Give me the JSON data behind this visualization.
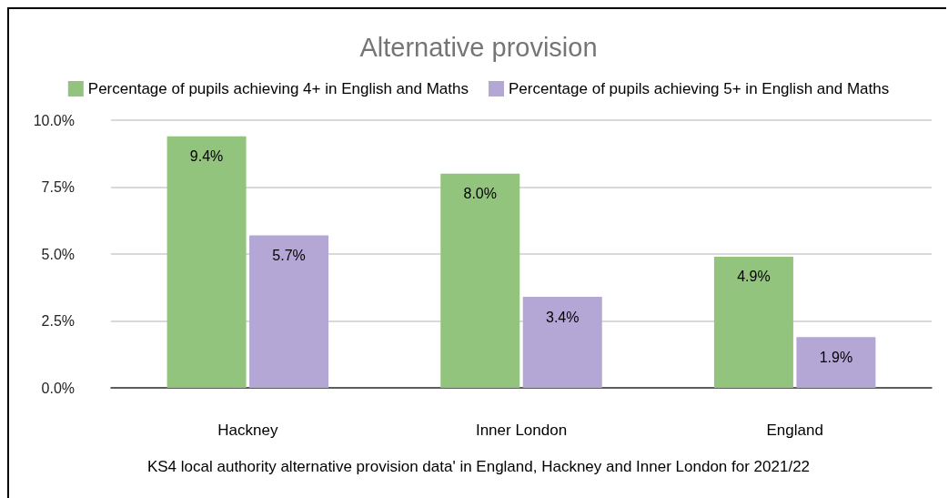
{
  "chart_data": {
    "type": "bar",
    "title": "Alternative provision",
    "categories": [
      "Hackney",
      "Inner London",
      "England"
    ],
    "series": [
      {
        "name": "Percentage of pupils achieving 4+ in English and Maths",
        "color": "#93c47d",
        "values": [
          9.4,
          8.0,
          4.9
        ],
        "value_labels": [
          "9.4%",
          "8.0%",
          "4.9%"
        ]
      },
      {
        "name": "Percentage of pupils achieving 5+ in English and Maths",
        "color": "#b4a7d6",
        "values": [
          5.7,
          3.4,
          1.9
        ],
        "value_labels": [
          "5.7%",
          "3.4%",
          "1.9%"
        ]
      }
    ],
    "ylim": [
      0,
      10
    ],
    "yticks": [
      {
        "value": 0,
        "label": "0.0%"
      },
      {
        "value": 2.5,
        "label": "2.5%"
      },
      {
        "value": 5,
        "label": "5.0%"
      },
      {
        "value": 7.5,
        "label": "7.5%"
      },
      {
        "value": 10,
        "label": "10.0%"
      }
    ],
    "grid": "y",
    "legend": "top",
    "annotations": [
      "KS4 local authority alternative provision data' in England, Hackney and Inner London for 2021/22"
    ]
  }
}
